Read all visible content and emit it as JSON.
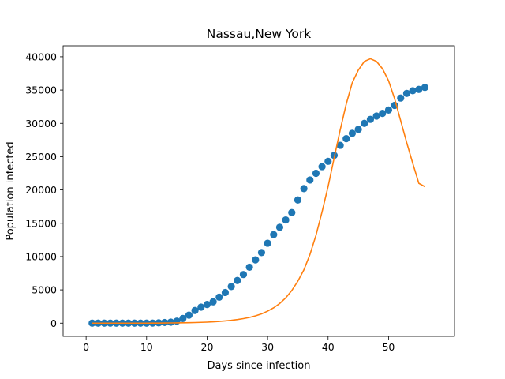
{
  "chart_data": {
    "type": "scatter",
    "title": "Nassau,New York",
    "xlabel": "Days since infection",
    "ylabel": "Population infected",
    "xlim": [
      -3.8,
      60.9
    ],
    "ylim": [
      -1985,
      41650
    ],
    "xticks": [
      0,
      10,
      20,
      30,
      40,
      50
    ],
    "yticks": [
      0,
      5000,
      10000,
      15000,
      20000,
      25000,
      30000,
      35000,
      40000
    ],
    "grid": false,
    "series": [
      {
        "kind": "scatter",
        "color": "#1f77b4",
        "x": [
          1,
          2,
          3,
          4,
          5,
          6,
          7,
          8,
          9,
          10,
          11,
          12,
          13,
          14,
          15,
          16,
          17,
          18,
          19,
          20,
          21,
          22,
          23,
          24,
          25,
          26,
          27,
          28,
          29,
          30,
          31,
          32,
          33,
          34,
          35,
          36,
          37,
          38,
          39,
          40,
          41,
          42,
          43,
          44,
          45,
          46,
          47,
          48,
          49,
          50,
          51,
          52,
          53,
          54,
          55,
          56
        ],
        "y": [
          0,
          0,
          0,
          0,
          0,
          0,
          0,
          0,
          0,
          0,
          10,
          50,
          100,
          150,
          300,
          700,
          1200,
          1900,
          2400,
          2800,
          3200,
          3900,
          4600,
          5500,
          6400,
          7300,
          8400,
          9500,
          10600,
          12000,
          13300,
          14400,
          15500,
          16600,
          18500,
          20200,
          21500,
          22500,
          23500,
          24300,
          25200,
          26700,
          27700,
          28500,
          29100,
          30000,
          30600,
          31100,
          31500,
          32000,
          32700,
          33800,
          34500,
          34900,
          35100,
          35400
        ]
      },
      {
        "kind": "line",
        "color": "#ff7f0e",
        "x": [
          1,
          2,
          3,
          4,
          5,
          6,
          7,
          8,
          9,
          10,
          11,
          12,
          13,
          14,
          15,
          16,
          17,
          18,
          19,
          20,
          21,
          22,
          23,
          24,
          25,
          26,
          27,
          28,
          29,
          30,
          31,
          32,
          33,
          34,
          35,
          36,
          37,
          38,
          39,
          40,
          41,
          42,
          43,
          44,
          45,
          46,
          47,
          48,
          49,
          50,
          51,
          52,
          53,
          54,
          55,
          56
        ],
        "y": [
          0,
          0,
          0,
          0,
          0,
          0,
          0,
          0,
          0,
          0,
          5,
          10,
          20,
          30,
          40,
          50,
          70,
          90,
          120,
          150,
          200,
          260,
          330,
          420,
          540,
          680,
          860,
          1100,
          1400,
          1800,
          2300,
          2950,
          3800,
          4900,
          6300,
          8000,
          10300,
          13200,
          16700,
          20500,
          24800,
          29000,
          32900,
          36100,
          38000,
          39300,
          39700,
          39300,
          38200,
          36400,
          33700,
          30400,
          27100,
          24000,
          21000,
          20500
        ]
      }
    ]
  }
}
